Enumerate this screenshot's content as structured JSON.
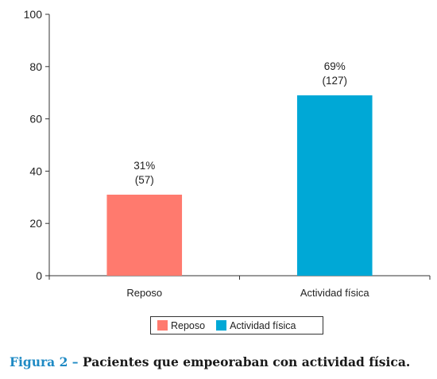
{
  "chart_data": {
    "type": "bar",
    "categories": [
      "Reposo",
      "Actividad física"
    ],
    "values": [
      31,
      69
    ],
    "data_labels": [
      {
        "percent": "31%",
        "count": "(57)"
      },
      {
        "percent": "69%",
        "count": "(127)"
      }
    ],
    "colors": [
      "#ff7a6e",
      "#00a8d6"
    ],
    "ylim": [
      0,
      100
    ],
    "yticks": [
      0,
      20,
      40,
      60,
      80,
      100
    ],
    "xlabel": "",
    "ylabel": "",
    "grid": false,
    "legend": {
      "position": "bottom",
      "entries": [
        "Reposo",
        "Actividad física"
      ]
    }
  },
  "caption": {
    "figure_label": "Figura 2 –",
    "text": "Pacientes que empeoraban con actividad física."
  }
}
